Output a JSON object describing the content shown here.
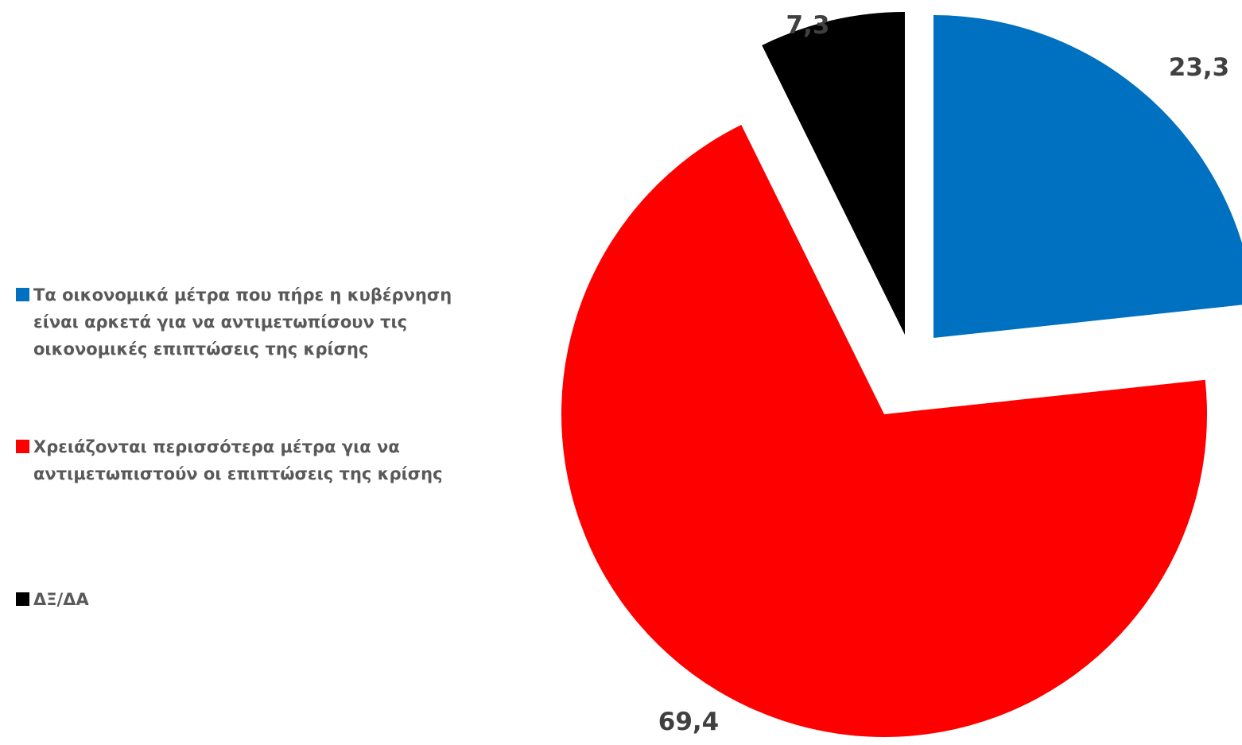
{
  "chart_data": {
    "type": "pie",
    "title": "",
    "slices": [
      {
        "label": "Τα οικονομικά μέτρα που πήρε η κυβέρνηση είναι αρκετά για να αντιμετωπίσουν τις οικονομικές επιπτώσεις της κρίσης",
        "value": 23.3,
        "display": "23,3",
        "color": "#0070C0"
      },
      {
        "label": "Χρειάζονται περισσότερα μέτρα για να αντιμετωπιστούν οι επιπτώσεις της κρίσης",
        "value": 69.4,
        "display": "69,4",
        "color": "#FF0000"
      },
      {
        "label": "ΔΞ/ΔΑ",
        "value": 7.3,
        "display": "7,3",
        "color": "#000000"
      }
    ],
    "legend_position": "left",
    "exploded": true
  }
}
